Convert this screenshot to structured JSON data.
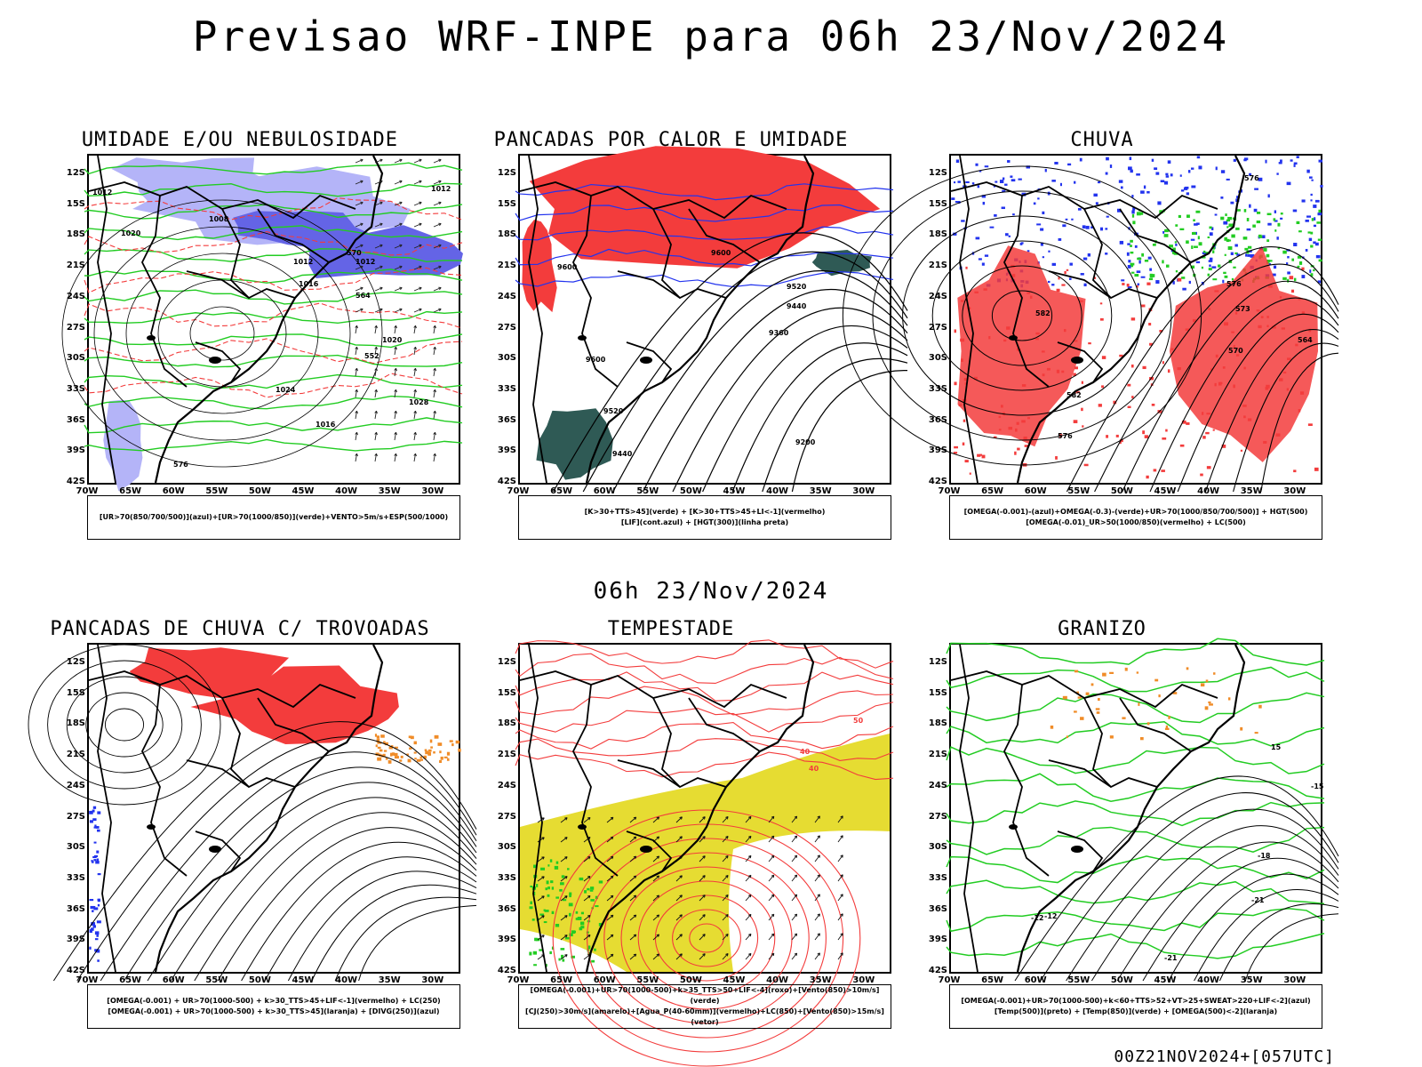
{
  "header": {
    "title": "Previsao WRF-INPE  para 06h 23/Nov/2024"
  },
  "middle_title": "06h 23/Nov/2024",
  "footer": "00Z21NOV2024+[057UTC]",
  "axes": {
    "y_labels": [
      "12S",
      "15S",
      "18S",
      "21S",
      "24S",
      "27S",
      "30S",
      "33S",
      "36S",
      "39S",
      "42S"
    ],
    "x_labels": [
      "70W",
      "65W",
      "60W",
      "55W",
      "50W",
      "45W",
      "40W",
      "35W",
      "30W"
    ]
  },
  "colors": {
    "red": "#f33c3c",
    "green": "#22cc22",
    "blue": "#2233ee",
    "lavender": "#b4b4f8",
    "purple_blue": "#6464e6",
    "orange": "#f08c28",
    "yellow": "#e6dc32",
    "dark_teal": "#2f5a55"
  },
  "panels": [
    {
      "title": "UMIDADE E/OU NEBULOSIDADE",
      "legend": [
        "[UR>70(850/700/500)](azul)+[UR>70(1000/850)](verde)+VENTO>5m/s+ESP(500/1000)"
      ],
      "contour_labels": [
        "1012",
        "1012",
        "1008",
        "1020",
        "1012",
        "1012",
        "1016",
        "1020",
        "1024",
        "1028",
        "1016",
        "576",
        "570",
        "564",
        "552"
      ]
    },
    {
      "title": "PANCADAS POR CALOR E UMIDADE",
      "legend": [
        "[K>30+TTS>45](verde) + [K>30+TTS>45+LI<-1](vermelho)",
        "[LIF](cont.azul) + [HGT(300)](linha preta)"
      ],
      "contour_labels": [
        "9600",
        "9600",
        "9520",
        "9440",
        "9360",
        "9200",
        "9600",
        "9520",
        "9440"
      ]
    },
    {
      "title": "CHUVA",
      "legend": [
        "[OMEGA(-0.001)-(azul)+OMEGA(-0.3)-(verde)+UR>70(1000/850/700/500)] + HGT(500)",
        "[OMEGA(-0.01)_UR>50(1000/850)(vermelho) + LC(500)"
      ],
      "contour_labels": [
        "582",
        "576",
        "573",
        "570",
        "564",
        "576",
        "582",
        "576"
      ]
    },
    {
      "title": "PANCADAS DE CHUVA C/ TROVOADAS",
      "legend": [
        "[OMEGA(-0.001) + UR>70(1000-500) + k>30_TTS>45+LIF<-1](vermelho) + LC(250)",
        "[OMEGA(-0.001) + UR>70(1000-500) + k>30_TTS>45](laranja) + [DIVG(250)](azul)"
      ],
      "contour_labels": []
    },
    {
      "title": "TEMPESTADE",
      "legend": [
        "[OMEGA(-0.001)+UR>70(1000-500)+k>35_TTS>50+LIF<-4](roxo)+[Vento(850)>10m/s](verde)",
        "[CJ(250)>30m/s](amarelo)+[Agua_P(40-60mm)](vermelho)+LC(850)+[Vento(850)>15m/s](vetor)"
      ],
      "contour_labels": [
        "50",
        "40",
        "40"
      ]
    },
    {
      "title": "GRANIZO",
      "legend": [
        "[OMEGA(-0.001)+UR>70(1000-500)+k<60+TTS>52+VT>25+SWEAT>220+LIF<-2](azul)",
        "[Temp(500)](preto) + [Temp(850)](verde) + [OMEGA(500)<-2](laranja)"
      ],
      "contour_labels": [
        "-12",
        "-15",
        "-18",
        "-21",
        "-12",
        "-21",
        "15"
      ]
    }
  ]
}
